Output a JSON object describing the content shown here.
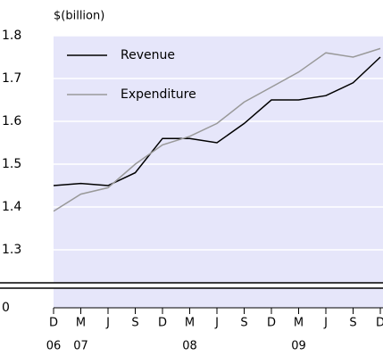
{
  "chart_data": {
    "type": "line",
    "y_axis_label": "$(billion)",
    "categories": [
      "D",
      "M",
      "J",
      "S",
      "D",
      "M",
      "J",
      "S",
      "D",
      "M",
      "J",
      "S",
      "D"
    ],
    "category_years": [
      "06",
      "07",
      null,
      null,
      null,
      "08",
      null,
      null,
      null,
      "09",
      null,
      null,
      null
    ],
    "series": [
      {
        "name": "Revenue",
        "color": "#000000",
        "values": [
          1.45,
          1.455,
          1.45,
          1.48,
          1.56,
          1.56,
          1.55,
          1.595,
          1.65,
          1.65,
          1.66,
          1.69,
          1.75
        ]
      },
      {
        "name": "Expenditure",
        "color": "#999999",
        "values": [
          1.39,
          1.43,
          1.445,
          1.5,
          1.545,
          1.565,
          1.595,
          1.645,
          1.68,
          1.715,
          1.76,
          1.75,
          1.77
        ]
      }
    ],
    "ylim": [
      1.25,
      1.8
    ],
    "yticks": [
      0,
      1.3,
      1.4,
      1.5,
      1.6,
      1.7,
      1.8
    ],
    "axis_break": true,
    "grid": true,
    "legend": "top-left",
    "background": "#e6e6fa"
  }
}
